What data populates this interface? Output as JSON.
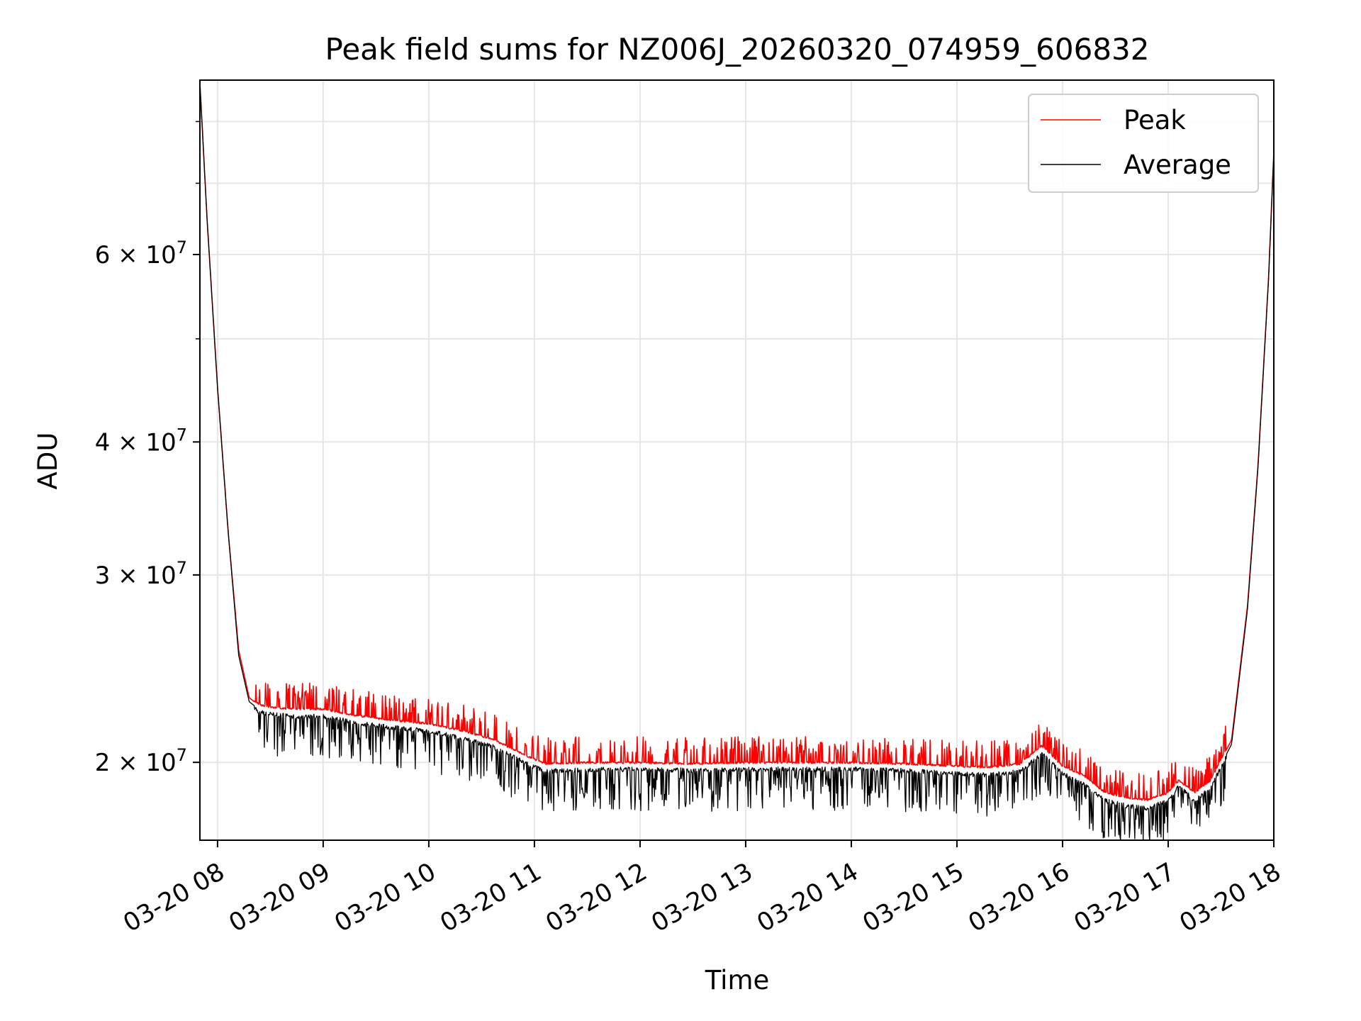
{
  "chart_data": {
    "type": "line",
    "title": "Peak field sums for NZ006J_20260320_074959_606832",
    "xlabel": "Time",
    "ylabel": "ADU",
    "y_scale": "log",
    "xlim_hours": [
      7.833,
      18.0
    ],
    "ylim": [
      16900000,
      87500000
    ],
    "grid": true,
    "legend_position": "upper right",
    "x_ticks": [
      {
        "value": 8,
        "label": "03-20 08"
      },
      {
        "value": 9,
        "label": "03-20 09"
      },
      {
        "value": 10,
        "label": "03-20 10"
      },
      {
        "value": 11,
        "label": "03-20 11"
      },
      {
        "value": 12,
        "label": "03-20 12"
      },
      {
        "value": 13,
        "label": "03-20 13"
      },
      {
        "value": 14,
        "label": "03-20 14"
      },
      {
        "value": 15,
        "label": "03-20 15"
      },
      {
        "value": 16,
        "label": "03-20 16"
      },
      {
        "value": 17,
        "label": "03-20 17"
      },
      {
        "value": 18,
        "label": "03-20 18"
      }
    ],
    "y_major_ticks": [
      {
        "value": 20000000,
        "mantissa": "2",
        "base": "10",
        "exp": "7"
      },
      {
        "value": 30000000,
        "mantissa": "3",
        "base": "10",
        "exp": "7"
      },
      {
        "value": 40000000,
        "mantissa": "4",
        "base": "10",
        "exp": "7"
      },
      {
        "value": 60000000,
        "mantissa": "6",
        "base": "10",
        "exp": "7"
      }
    ],
    "y_minor_ticks": [
      50000000,
      70000000,
      80000000
    ],
    "series": [
      {
        "name": "Peak",
        "color": "#ff0000",
        "x_hours": [
          7.833,
          7.9,
          8.0,
          8.1,
          8.2,
          8.3,
          8.4,
          8.5,
          8.7,
          9.0,
          9.3,
          9.6,
          10.0,
          10.3,
          10.6,
          10.9,
          11.1,
          11.5,
          12.0,
          12.5,
          13.0,
          13.5,
          14.0,
          14.5,
          15.0,
          15.3,
          15.6,
          15.8,
          16.0,
          16.2,
          16.4,
          16.6,
          16.8,
          17.0,
          17.1,
          17.25,
          17.4,
          17.6,
          17.75,
          17.85,
          17.95,
          18.0
        ],
        "values": [
          87000000,
          65000000,
          45000000,
          33000000,
          25500000,
          23000000,
          22600000,
          22500000,
          22400000,
          22400000,
          22100000,
          21900000,
          21700000,
          21400000,
          21000000,
          20300000,
          19900000,
          19950000,
          19950000,
          19900000,
          19950000,
          19950000,
          19950000,
          19900000,
          19800000,
          19750000,
          19900000,
          20700000,
          19800000,
          19400000,
          18700000,
          18500000,
          18400000,
          18700000,
          19200000,
          18700000,
          19200000,
          21000000,
          28000000,
          38000000,
          57000000,
          75000000
        ]
      },
      {
        "name": "Average",
        "color": "#000000",
        "x_hours": [
          7.833,
          7.9,
          8.0,
          8.1,
          8.2,
          8.3,
          8.4,
          8.5,
          8.7,
          9.0,
          9.3,
          9.6,
          10.0,
          10.3,
          10.6,
          10.9,
          11.1,
          11.5,
          12.0,
          12.5,
          13.0,
          13.5,
          14.0,
          14.5,
          15.0,
          15.3,
          15.6,
          15.8,
          16.0,
          16.2,
          16.4,
          16.6,
          16.8,
          17.0,
          17.1,
          17.25,
          17.4,
          17.6,
          17.75,
          17.85,
          17.95,
          18.0
        ],
        "values": [
          87000000,
          65000000,
          45000000,
          33000000,
          25200000,
          22800000,
          22400000,
          22300000,
          22200000,
          22200000,
          21900000,
          21700000,
          21500000,
          21200000,
          20800000,
          20100000,
          19700000,
          19800000,
          19800000,
          19750000,
          19800000,
          19800000,
          19800000,
          19750000,
          19600000,
          19550000,
          19700000,
          20500000,
          19600000,
          19200000,
          18500000,
          18300000,
          18200000,
          18500000,
          19100000,
          18500000,
          19000000,
          20800000,
          27800000,
          37800000,
          56800000,
          74800000
        ]
      }
    ]
  }
}
